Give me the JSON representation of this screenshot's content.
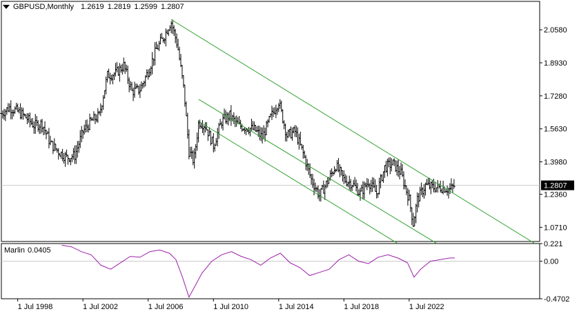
{
  "header": {
    "symbol": "GBPUSD,Monthly",
    "open": "1.2619",
    "high": "1.2819",
    "low": "1.2599",
    "close": "1.2807"
  },
  "indicator": {
    "name": "Marlin",
    "value": "0.0405"
  },
  "colors": {
    "bars": "#000000",
    "channel": "#2ea02e",
    "indicator": "#9b1fa8",
    "grid": "#c8c8c8",
    "axis": "#000000"
  },
  "chart_data": [
    {
      "type": "ohlc",
      "title": "GBPUSD,Monthly",
      "x_labels": [
        "1 Jul 1998",
        "1 Jul 2002",
        "1 Jul 2006",
        "1 Jul 2010",
        "1 Jul 2014",
        "1 Jul 2018",
        "1 Jul 2022"
      ],
      "y_ticks": [
        "2.0580",
        "1.8930",
        "1.7280",
        "1.5630",
        "1.3980",
        "1.2360",
        "1.0710"
      ],
      "current_price_label": "1.2807",
      "ylim": [
        1.0,
        2.2
      ],
      "xlim": [
        1997.5,
        2030.5
      ],
      "series": [
        {
          "x": 1997.5,
          "y": 1.64
        },
        {
          "x": 1998.0,
          "y": 1.67
        },
        {
          "x": 1998.5,
          "y": 1.65
        },
        {
          "x": 1999.0,
          "y": 1.62
        },
        {
          "x": 1999.5,
          "y": 1.58
        },
        {
          "x": 2000.0,
          "y": 1.59
        },
        {
          "x": 2000.5,
          "y": 1.49
        },
        {
          "x": 2001.0,
          "y": 1.45
        },
        {
          "x": 2001.5,
          "y": 1.42
        },
        {
          "x": 2002.0,
          "y": 1.43
        },
        {
          "x": 2002.5,
          "y": 1.55
        },
        {
          "x": 2003.0,
          "y": 1.6
        },
        {
          "x": 2003.5,
          "y": 1.63
        },
        {
          "x": 2004.0,
          "y": 1.83
        },
        {
          "x": 2004.5,
          "y": 1.84
        },
        {
          "x": 2005.0,
          "y": 1.88
        },
        {
          "x": 2005.5,
          "y": 1.75
        },
        {
          "x": 2006.0,
          "y": 1.76
        },
        {
          "x": 2006.5,
          "y": 1.85
        },
        {
          "x": 2007.0,
          "y": 1.96
        },
        {
          "x": 2007.5,
          "y": 2.03
        },
        {
          "x": 2007.9,
          "y": 2.1
        },
        {
          "x": 2008.3,
          "y": 1.98
        },
        {
          "x": 2008.7,
          "y": 1.75
        },
        {
          "x": 2009.0,
          "y": 1.45
        },
        {
          "x": 2009.3,
          "y": 1.4
        },
        {
          "x": 2009.6,
          "y": 1.6
        },
        {
          "x": 2010.0,
          "y": 1.58
        },
        {
          "x": 2010.5,
          "y": 1.48
        },
        {
          "x": 2011.0,
          "y": 1.6
        },
        {
          "x": 2011.5,
          "y": 1.63
        },
        {
          "x": 2012.0,
          "y": 1.58
        },
        {
          "x": 2012.5,
          "y": 1.57
        },
        {
          "x": 2013.0,
          "y": 1.56
        },
        {
          "x": 2013.5,
          "y": 1.52
        },
        {
          "x": 2014.0,
          "y": 1.62
        },
        {
          "x": 2014.5,
          "y": 1.7
        },
        {
          "x": 2015.0,
          "y": 1.53
        },
        {
          "x": 2015.5,
          "y": 1.55
        },
        {
          "x": 2016.0,
          "y": 1.44
        },
        {
          "x": 2016.5,
          "y": 1.31
        },
        {
          "x": 2017.0,
          "y": 1.23
        },
        {
          "x": 2017.5,
          "y": 1.3
        },
        {
          "x": 2018.0,
          "y": 1.38
        },
        {
          "x": 2018.5,
          "y": 1.31
        },
        {
          "x": 2019.0,
          "y": 1.29
        },
        {
          "x": 2019.5,
          "y": 1.24
        },
        {
          "x": 2020.0,
          "y": 1.3
        },
        {
          "x": 2020.5,
          "y": 1.24
        },
        {
          "x": 2021.0,
          "y": 1.37
        },
        {
          "x": 2021.5,
          "y": 1.39
        },
        {
          "x": 2022.0,
          "y": 1.34
        },
        {
          "x": 2022.5,
          "y": 1.21
        },
        {
          "x": 2022.75,
          "y": 1.09
        },
        {
          "x": 2023.0,
          "y": 1.21
        },
        {
          "x": 2023.5,
          "y": 1.28
        },
        {
          "x": 2024.0,
          "y": 1.27
        },
        {
          "x": 2024.5,
          "y": 1.27
        },
        {
          "x": 2025.0,
          "y": 1.26
        },
        {
          "x": 2025.3,
          "y": 1.28
        }
      ],
      "channel_lines": [
        {
          "x1": 2007.9,
          "y1": 2.11,
          "x2": 2030.2,
          "y2": 0.99
        },
        {
          "x1": 2009.6,
          "y1": 1.71,
          "x2": 2024.2,
          "y2": 0.99
        },
        {
          "x1": 2009.6,
          "y1": 1.6,
          "x2": 2021.8,
          "y2": 0.99
        }
      ]
    },
    {
      "type": "line",
      "title": "Marlin 0.0405",
      "y_ticks": [
        "0.221",
        "0.00",
        "-0.4702"
      ],
      "ylim": [
        -0.4702,
        0.221
      ],
      "x": [
        2001.2,
        2001.8,
        2002.4,
        2003.0,
        2003.6,
        2004.2,
        2004.8,
        2005.4,
        2006.0,
        2006.6,
        2007.2,
        2007.8,
        2008.2,
        2008.6,
        2009.0,
        2009.4,
        2009.8,
        2010.4,
        2011.0,
        2011.6,
        2012.2,
        2012.8,
        2013.4,
        2014.0,
        2014.6,
        2015.2,
        2015.8,
        2016.4,
        2017.0,
        2017.6,
        2018.2,
        2018.8,
        2019.4,
        2020.0,
        2020.6,
        2021.2,
        2021.8,
        2022.4,
        2022.8,
        2023.2,
        2023.8,
        2024.4,
        2025.0,
        2025.3
      ],
      "y": [
        0.2,
        0.18,
        0.12,
        0.08,
        -0.05,
        -0.1,
        -0.02,
        0.06,
        0.05,
        0.12,
        0.14,
        0.1,
        0.02,
        -0.2,
        -0.45,
        -0.3,
        -0.15,
        0.0,
        0.08,
        0.12,
        0.06,
        0.02,
        -0.05,
        0.04,
        0.1,
        -0.02,
        -0.08,
        -0.18,
        -0.14,
        -0.1,
        0.02,
        0.08,
        0.0,
        -0.03,
        0.05,
        0.08,
        0.04,
        -0.02,
        -0.2,
        -0.1,
        0.0,
        0.02,
        0.04,
        0.0405
      ]
    }
  ]
}
